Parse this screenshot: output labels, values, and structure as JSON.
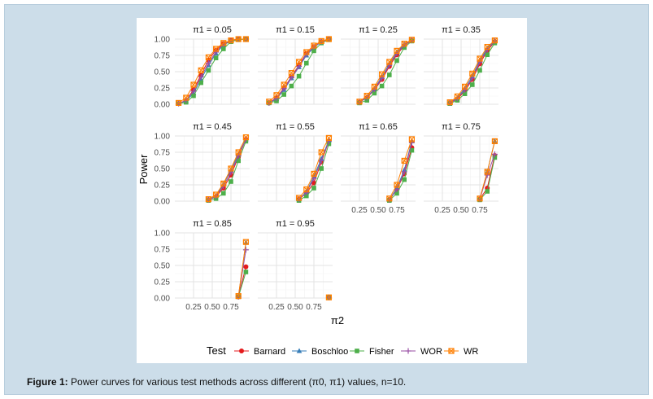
{
  "caption": {
    "label": "Figure 1:",
    "text": "Power curves for various test methods across different (π0, π1) values, n=10."
  },
  "chart_data": {
    "type": "line",
    "xlabel": "π2",
    "ylabel": "Power",
    "xlim": [
      0,
      1
    ],
    "ylim": [
      0,
      1
    ],
    "x_ticks": [
      "0.25",
      "0.50",
      "0.75"
    ],
    "y_ticks": [
      "0.00",
      "0.25",
      "0.50",
      "0.75",
      "1.00"
    ],
    "legend_title": "Test",
    "legend_position": "bottom",
    "series_styles": [
      {
        "name": "Barnard",
        "color": "#e41a1c",
        "marker": "circle"
      },
      {
        "name": "Boschloo",
        "color": "#377eb8",
        "marker": "triangle"
      },
      {
        "name": "Fisher",
        "color": "#4daf4a",
        "marker": "square"
      },
      {
        "name": "WOR",
        "color": "#984ea3",
        "marker": "plus"
      },
      {
        "name": "WR",
        "color": "#ff7f00",
        "marker": "boxcross"
      }
    ],
    "panels": [
      {
        "title": "π1 = 0.05",
        "x": [
          0.05,
          0.15,
          0.25,
          0.35,
          0.45,
          0.55,
          0.65,
          0.75,
          0.85,
          0.95
        ],
        "series": [
          {
            "name": "Barnard",
            "values": [
              0.01,
              0.06,
              0.22,
              0.45,
              0.68,
              0.83,
              0.93,
              0.98,
              1.0,
              1.0
            ]
          },
          {
            "name": "Boschloo",
            "values": [
              0.01,
              0.05,
              0.17,
              0.38,
              0.6,
              0.78,
              0.91,
              0.97,
              1.0,
              1.0
            ]
          },
          {
            "name": "Fisher",
            "values": [
              0.01,
              0.03,
              0.13,
              0.33,
              0.52,
              0.71,
              0.85,
              0.96,
              0.99,
              1.0
            ]
          },
          {
            "name": "WOR",
            "values": [
              0.01,
              0.06,
              0.2,
              0.42,
              0.63,
              0.8,
              0.92,
              0.98,
              1.0,
              1.0
            ]
          },
          {
            "name": "WR",
            "values": [
              0.02,
              0.1,
              0.3,
              0.52,
              0.72,
              0.85,
              0.94,
              0.98,
              1.0,
              1.0
            ]
          }
        ]
      },
      {
        "title": "π1 = 0.15",
        "x": [
          0.15,
          0.25,
          0.35,
          0.45,
          0.55,
          0.65,
          0.75,
          0.85,
          0.95
        ],
        "series": [
          {
            "name": "Barnard",
            "values": [
              0.02,
              0.1,
              0.25,
              0.42,
              0.6,
              0.78,
              0.88,
              0.96,
              1.0
            ]
          },
          {
            "name": "Boschloo",
            "values": [
              0.02,
              0.08,
              0.22,
              0.4,
              0.57,
              0.75,
              0.87,
              0.96,
              1.0
            ]
          },
          {
            "name": "Fisher",
            "values": [
              0.02,
              0.05,
              0.15,
              0.28,
              0.43,
              0.63,
              0.82,
              0.94,
              0.99
            ]
          },
          {
            "name": "WOR",
            "values": [
              0.02,
              0.09,
              0.24,
              0.41,
              0.58,
              0.77,
              0.88,
              0.96,
              1.0
            ]
          },
          {
            "name": "WR",
            "values": [
              0.04,
              0.14,
              0.3,
              0.48,
              0.65,
              0.8,
              0.9,
              0.97,
              1.0
            ]
          }
        ]
      },
      {
        "title": "π1 = 0.25",
        "x": [
          0.25,
          0.35,
          0.45,
          0.55,
          0.65,
          0.75,
          0.85,
          0.95
        ],
        "series": [
          {
            "name": "Barnard",
            "values": [
              0.03,
              0.1,
              0.22,
              0.38,
              0.58,
              0.76,
              0.9,
              0.98
            ]
          },
          {
            "name": "Boschloo",
            "values": [
              0.03,
              0.11,
              0.24,
              0.42,
              0.62,
              0.8,
              0.92,
              0.99
            ]
          },
          {
            "name": "Fisher",
            "values": [
              0.02,
              0.06,
              0.17,
              0.28,
              0.45,
              0.67,
              0.87,
              0.97
            ]
          },
          {
            "name": "WOR",
            "values": [
              0.03,
              0.1,
              0.23,
              0.4,
              0.6,
              0.78,
              0.91,
              0.98
            ]
          },
          {
            "name": "WR",
            "values": [
              0.04,
              0.13,
              0.27,
              0.46,
              0.65,
              0.82,
              0.93,
              0.99
            ]
          }
        ]
      },
      {
        "title": "π1 = 0.35",
        "x": [
          0.35,
          0.45,
          0.55,
          0.65,
          0.75,
          0.85,
          0.95
        ],
        "series": [
          {
            "name": "Barnard",
            "values": [
              0.02,
              0.08,
              0.2,
              0.38,
              0.62,
              0.82,
              0.96
            ]
          },
          {
            "name": "Boschloo",
            "values": [
              0.02,
              0.1,
              0.24,
              0.43,
              0.67,
              0.86,
              0.98
            ]
          },
          {
            "name": "Fisher",
            "values": [
              0.01,
              0.06,
              0.16,
              0.3,
              0.52,
              0.76,
              0.94
            ]
          },
          {
            "name": "WOR",
            "values": [
              0.02,
              0.09,
              0.22,
              0.4,
              0.65,
              0.84,
              0.97
            ]
          },
          {
            "name": "WR",
            "values": [
              0.03,
              0.12,
              0.27,
              0.47,
              0.7,
              0.88,
              0.98
            ]
          }
        ]
      },
      {
        "title": "π1 = 0.45",
        "x": [
          0.45,
          0.55,
          0.65,
          0.75,
          0.85,
          0.95
        ],
        "series": [
          {
            "name": "Barnard",
            "values": [
              0.02,
              0.07,
              0.2,
              0.4,
              0.68,
              0.95
            ]
          },
          {
            "name": "Boschloo",
            "values": [
              0.02,
              0.08,
              0.26,
              0.48,
              0.72,
              0.95
            ]
          },
          {
            "name": "Fisher",
            "values": [
              0.01,
              0.04,
              0.12,
              0.3,
              0.62,
              0.92
            ]
          },
          {
            "name": "WOR",
            "values": [
              0.02,
              0.07,
              0.23,
              0.44,
              0.7,
              0.95
            ]
          },
          {
            "name": "WR",
            "values": [
              0.03,
              0.1,
              0.27,
              0.5,
              0.75,
              0.98
            ]
          }
        ]
      },
      {
        "title": "π1 = 0.55",
        "x": [
          0.55,
          0.65,
          0.75,
          0.85,
          0.95
        ],
        "series": [
          {
            "name": "Barnard",
            "values": [
              0.03,
              0.12,
              0.28,
              0.6,
              0.92
            ]
          },
          {
            "name": "Boschloo",
            "values": [
              0.03,
              0.14,
              0.38,
              0.65,
              0.93
            ]
          },
          {
            "name": "Fisher",
            "values": [
              0.01,
              0.08,
              0.2,
              0.5,
              0.88
            ]
          },
          {
            "name": "WOR",
            "values": [
              0.03,
              0.13,
              0.35,
              0.62,
              0.92
            ]
          },
          {
            "name": "WR",
            "values": [
              0.05,
              0.18,
              0.42,
              0.75,
              0.97
            ]
          }
        ]
      },
      {
        "title": "π1 = 0.65",
        "x": [
          0.65,
          0.75,
          0.85,
          0.95
        ],
        "series": [
          {
            "name": "Barnard",
            "values": [
              0.02,
              0.18,
              0.42,
              0.82
            ]
          },
          {
            "name": "Boschloo",
            "values": [
              0.02,
              0.2,
              0.48,
              0.92
            ]
          },
          {
            "name": "Fisher",
            "values": [
              0.01,
              0.12,
              0.33,
              0.78
            ]
          },
          {
            "name": "WOR",
            "values": [
              0.02,
              0.18,
              0.45,
              0.9
            ]
          },
          {
            "name": "WR",
            "values": [
              0.04,
              0.25,
              0.62,
              0.95
            ]
          }
        ]
      },
      {
        "title": "π1 = 0.75",
        "x": [
          0.75,
          0.85,
          0.95
        ],
        "series": [
          {
            "name": "Barnard",
            "values": [
              0.03,
              0.2,
              0.7
            ]
          },
          {
            "name": "Boschloo",
            "values": [
              0.03,
              0.45,
              0.92
            ]
          },
          {
            "name": "Fisher",
            "values": [
              0.02,
              0.15,
              0.67
            ]
          },
          {
            "name": "WOR",
            "values": [
              0.03,
              0.4,
              0.72
            ]
          },
          {
            "name": "WR",
            "values": [
              0.04,
              0.45,
              0.92
            ]
          }
        ]
      },
      {
        "title": "π1 = 0.85",
        "x": [
          0.85,
          0.95
        ],
        "series": [
          {
            "name": "Barnard",
            "values": [
              0.02,
              0.48
            ]
          },
          {
            "name": "Boschloo",
            "values": [
              0.02,
              0.85
            ]
          },
          {
            "name": "Fisher",
            "values": [
              0.02,
              0.4
            ]
          },
          {
            "name": "WOR",
            "values": [
              0.02,
              0.74
            ]
          },
          {
            "name": "WR",
            "values": [
              0.03,
              0.86
            ]
          }
        ]
      },
      {
        "title": "π1 = 0.95",
        "x": [
          0.95
        ],
        "series": [
          {
            "name": "Barnard",
            "values": [
              0.01
            ]
          },
          {
            "name": "Boschloo",
            "values": [
              0.01
            ]
          },
          {
            "name": "Fisher",
            "values": [
              0.01
            ]
          },
          {
            "name": "WOR",
            "values": [
              0.01
            ]
          },
          {
            "name": "WR",
            "values": [
              0.01
            ]
          }
        ]
      }
    ]
  }
}
